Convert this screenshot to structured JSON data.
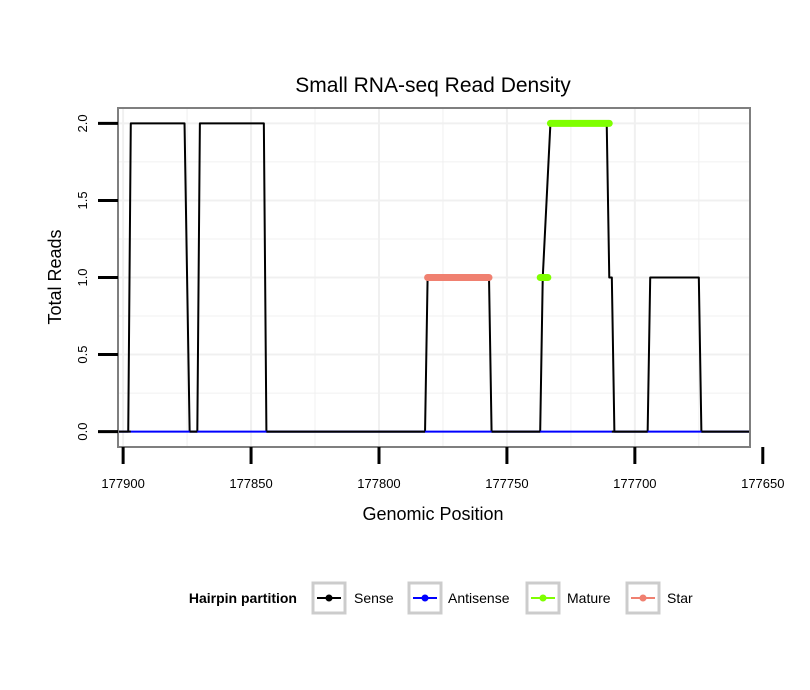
{
  "chart_data": {
    "type": "line",
    "title": "Small RNA-seq Read Density",
    "xlabel": "Genomic Position",
    "ylabel": "Total Reads",
    "x_reversed": true,
    "xlim": [
      177902,
      177655
    ],
    "ylim": [
      -0.1,
      2.1
    ],
    "x_ticks": [
      177900,
      177850,
      177800,
      177750,
      177700,
      177650
    ],
    "y_ticks": [
      0.0,
      0.5,
      1.0,
      1.5,
      2.0
    ],
    "y_tick_labels": [
      "0.0",
      "0.5",
      "1.0",
      "1.5",
      "2.0"
    ],
    "grid": true,
    "legend": {
      "title": "Hairpin partition",
      "position": "bottom",
      "entries": [
        "Sense",
        "Antisense",
        "Mature",
        "Star"
      ]
    },
    "series": [
      {
        "name": "Sense",
        "color": "#000000",
        "x": [
          177902,
          177898,
          177897,
          177876,
          177874,
          177873,
          177871,
          177870,
          177845,
          177844,
          177843,
          177782,
          177781,
          177757,
          177756,
          177755,
          177737,
          177736,
          177733,
          177732,
          177711,
          177710,
          177709,
          177708,
          177695,
          177694,
          177675,
          177674,
          177655
        ],
        "y": [
          0,
          0,
          2,
          2,
          0,
          0,
          0,
          2,
          2,
          0,
          0,
          0,
          1,
          1,
          0,
          0,
          0,
          1,
          2,
          2,
          2,
          1,
          1,
          0,
          0,
          1,
          1,
          0,
          0
        ]
      },
      {
        "name": "Antisense",
        "color": "#0000ff",
        "x": [
          177902,
          177655
        ],
        "y": [
          0,
          0
        ]
      },
      {
        "name": "Mature",
        "color": "#7fff00",
        "segments": [
          {
            "x": [
              177737,
              177734
            ],
            "y": [
              1,
              1
            ]
          },
          {
            "x": [
              177733,
              177710
            ],
            "y": [
              2,
              2
            ]
          }
        ]
      },
      {
        "name": "Star",
        "color": "#f08070",
        "segments": [
          {
            "x": [
              177781,
              177757
            ],
            "y": [
              1,
              1
            ]
          }
        ]
      }
    ]
  }
}
